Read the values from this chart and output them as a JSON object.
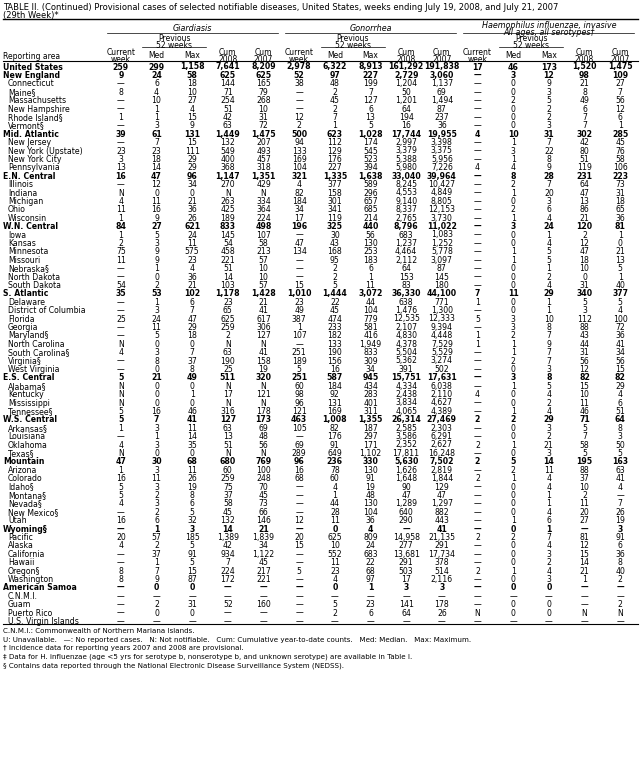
{
  "title1": "TABLE II. (Continued) Provisional cases of selected notifiable diseases, United States, weeks ending July 19, 2008, and July 21, 2007",
  "title2": "(29th Week)*",
  "rows": [
    [
      "United States",
      "259",
      "299",
      "1,158",
      "7,641",
      "8,209",
      "2,978",
      "6,322",
      "8,913",
      "161,292",
      "191,838",
      "17",
      "46",
      "173",
      "1,520",
      "1,475"
    ],
    [
      "New England",
      "9",
      "24",
      "58",
      "625",
      "625",
      "52",
      "97",
      "227",
      "2,729",
      "3,060",
      "—",
      "3",
      "12",
      "98",
      "109"
    ],
    [
      "Connecticut",
      "—",
      "6",
      "18",
      "144",
      "165",
      "38",
      "48",
      "199",
      "1,204",
      "1,137",
      "—",
      "0",
      "9",
      "21",
      "27"
    ],
    [
      "Maine§",
      "8",
      "4",
      "10",
      "71",
      "79",
      "—",
      "2",
      "7",
      "50",
      "69",
      "—",
      "0",
      "3",
      "8",
      "7"
    ],
    [
      "Massachusetts",
      "—",
      "10",
      "27",
      "254",
      "268",
      "—",
      "45",
      "127",
      "1,201",
      "1,494",
      "—",
      "2",
      "5",
      "49",
      "56"
    ],
    [
      "New Hampshire",
      "—",
      "1",
      "4",
      "51",
      "10",
      "—",
      "2",
      "6",
      "64",
      "87",
      "—",
      "0",
      "2",
      "6",
      "12"
    ],
    [
      "Rhode Island§",
      "1",
      "1",
      "15",
      "42",
      "31",
      "12",
      "7",
      "13",
      "194",
      "237",
      "—",
      "0",
      "2",
      "7",
      "6"
    ],
    [
      "Vermont§",
      "—",
      "3",
      "9",
      "63",
      "72",
      "2",
      "1",
      "5",
      "16",
      "36",
      "—",
      "0",
      "3",
      "7",
      "1"
    ],
    [
      "Mid. Atlantic",
      "39",
      "61",
      "131",
      "1,449",
      "1,475",
      "500",
      "623",
      "1,028",
      "17,744",
      "19,955",
      "4",
      "10",
      "31",
      "302",
      "285"
    ],
    [
      "New Jersey",
      "—",
      "7",
      "15",
      "132",
      "207",
      "94",
      "112",
      "174",
      "2,997",
      "3,398",
      "—",
      "1",
      "7",
      "42",
      "45"
    ],
    [
      "New York (Upstate)",
      "23",
      "23",
      "111",
      "549",
      "493",
      "133",
      "129",
      "545",
      "3,379",
      "3,375",
      "—",
      "3",
      "22",
      "80",
      "76"
    ],
    [
      "New York City",
      "3",
      "18",
      "29",
      "400",
      "457",
      "169",
      "176",
      "523",
      "5,388",
      "5,956",
      "—",
      "1",
      "8",
      "51",
      "58"
    ],
    [
      "Pennsylvania",
      "13",
      "14",
      "29",
      "368",
      "318",
      "104",
      "227",
      "394",
      "5,980",
      "7,226",
      "4",
      "4",
      "9",
      "119",
      "106"
    ],
    [
      "E.N. Central",
      "16",
      "47",
      "96",
      "1,147",
      "1,351",
      "321",
      "1,335",
      "1,638",
      "33,040",
      "39,964",
      "—",
      "8",
      "28",
      "231",
      "223"
    ],
    [
      "Illinois",
      "—",
      "12",
      "34",
      "270",
      "429",
      "4",
      "377",
      "589",
      "8,245",
      "10,427",
      "—",
      "2",
      "7",
      "64",
      "73"
    ],
    [
      "Indiana",
      "N",
      "0",
      "0",
      "N",
      "N",
      "82",
      "158",
      "296",
      "4,553",
      "4,849",
      "—",
      "1",
      "20",
      "47",
      "31"
    ],
    [
      "Michigan",
      "4",
      "11",
      "21",
      "263",
      "334",
      "184",
      "301",
      "657",
      "9,140",
      "8,805",
      "—",
      "0",
      "3",
      "13",
      "18"
    ],
    [
      "Ohio",
      "11",
      "16",
      "36",
      "425",
      "364",
      "34",
      "341",
      "685",
      "8,337",
      "12,153",
      "—",
      "2",
      "6",
      "86",
      "65"
    ],
    [
      "Wisconsin",
      "1",
      "9",
      "26",
      "189",
      "224",
      "17",
      "119",
      "214",
      "2,765",
      "3,730",
      "—",
      "1",
      "4",
      "21",
      "36"
    ],
    [
      "W.N. Central",
      "84",
      "27",
      "621",
      "833",
      "498",
      "196",
      "325",
      "440",
      "8,796",
      "11,022",
      "—",
      "3",
      "24",
      "120",
      "81"
    ],
    [
      "Iowa",
      "1",
      "5",
      "24",
      "145",
      "107",
      "—",
      "30",
      "56",
      "683",
      "1,083",
      "—",
      "0",
      "1",
      "2",
      "1"
    ],
    [
      "Kansas",
      "2",
      "3",
      "11",
      "54",
      "58",
      "47",
      "43",
      "130",
      "1,237",
      "1,252",
      "—",
      "0",
      "4",
      "12",
      "0"
    ],
    [
      "Minnesota",
      "75",
      "9",
      "575",
      "458",
      "213",
      "134",
      "168",
      "253",
      "4,464",
      "5,778",
      "—",
      "1",
      "5",
      "47",
      "21"
    ],
    [
      "Missouri",
      "11",
      "9",
      "23",
      "221",
      "57",
      "—",
      "95",
      "183",
      "2,112",
      "3,097",
      "—",
      "1",
      "5",
      "18",
      "13"
    ],
    [
      "Nebraska§",
      "—",
      "1",
      "4",
      "51",
      "10",
      "—",
      "2",
      "6",
      "64",
      "87",
      "—",
      "0",
      "1",
      "10",
      "5"
    ],
    [
      "North Dakota",
      "—",
      "0",
      "36",
      "14",
      "10",
      "—",
      "2",
      "1",
      "153",
      "145",
      "—",
      "0",
      "2",
      "0",
      "1"
    ],
    [
      "South Dakota",
      "54",
      "2",
      "21",
      "103",
      "57",
      "15",
      "5",
      "11",
      "83",
      "180",
      "—",
      "0",
      "4",
      "31",
      "40"
    ],
    [
      "S. Atlantic",
      "35",
      "53",
      "102",
      "1,178",
      "1,428",
      "1,010",
      "1,444",
      "3,072",
      "36,330",
      "44,100",
      "7",
      "11",
      "29",
      "340",
      "377"
    ],
    [
      "Delaware",
      "—",
      "1",
      "6",
      "23",
      "21",
      "23",
      "22",
      "44",
      "638",
      "771",
      "1",
      "0",
      "1",
      "5",
      "5"
    ],
    [
      "District of Columbia",
      "—",
      "3",
      "7",
      "65",
      "41",
      "49",
      "45",
      "104",
      "1,476",
      "1,300",
      "—",
      "0",
      "1",
      "3",
      "4"
    ],
    [
      "Florida",
      "25",
      "24",
      "47",
      "625",
      "617",
      "387",
      "474",
      "779",
      "12,535",
      "12,333",
      "5",
      "3",
      "10",
      "112",
      "100"
    ],
    [
      "Georgia",
      "—",
      "11",
      "29",
      "259",
      "306",
      "1",
      "233",
      "581",
      "2,107",
      "9,394",
      "—",
      "3",
      "8",
      "88",
      "72"
    ],
    [
      "Maryland§",
      "—",
      "5",
      "18",
      "2",
      "127",
      "107",
      "182",
      "416",
      "4,830",
      "4,448",
      "1",
      "2",
      "7",
      "43",
      "36"
    ],
    [
      "North Carolina",
      "N",
      "0",
      "0",
      "N",
      "N",
      "—",
      "133",
      "1,949",
      "4,378",
      "7,529",
      "1",
      "1",
      "9",
      "44",
      "41"
    ],
    [
      "South Carolina§",
      "4",
      "3",
      "7",
      "63",
      "41",
      "251",
      "190",
      "833",
      "5,504",
      "5,529",
      "—",
      "1",
      "7",
      "31",
      "34"
    ],
    [
      "Virginia§",
      "—",
      "8",
      "37",
      "190",
      "158",
      "189",
      "156",
      "309",
      "5,362",
      "3,274",
      "—",
      "2",
      "7",
      "56",
      "56"
    ],
    [
      "West Virginia",
      "—",
      "0",
      "8",
      "25",
      "19",
      "5",
      "16",
      "34",
      "391",
      "502",
      "—",
      "0",
      "3",
      "12",
      "15"
    ],
    [
      "E.S. Central",
      "5",
      "21",
      "49",
      "511",
      "320",
      "251",
      "587",
      "945",
      "15,751",
      "17,631",
      "—",
      "3",
      "8",
      "82",
      "82"
    ],
    [
      "Alabama§",
      "N",
      "0",
      "0",
      "N",
      "N",
      "60",
      "184",
      "434",
      "4,334",
      "6,038",
      "—",
      "1",
      "5",
      "15",
      "29"
    ],
    [
      "Kentucky",
      "N",
      "0",
      "1",
      "17",
      "121",
      "98",
      "92",
      "283",
      "2,438",
      "2,110",
      "4",
      "0",
      "4",
      "10",
      "4"
    ],
    [
      "Mississippi",
      "N",
      "0",
      "0",
      "N",
      "N",
      "96",
      "131",
      "401",
      "3,834",
      "4,627",
      "—",
      "0",
      "2",
      "11",
      "6"
    ],
    [
      "Tennessee§",
      "5",
      "16",
      "46",
      "316",
      "178",
      "121",
      "169",
      "311",
      "4,065",
      "4,389",
      "—",
      "1",
      "4",
      "46",
      "51"
    ],
    [
      "W.S. Central",
      "5",
      "7",
      "41",
      "127",
      "173",
      "463",
      "1,008",
      "1,355",
      "26,314",
      "27,469",
      "2",
      "2",
      "29",
      "71",
      "64"
    ],
    [
      "Arkansas§",
      "1",
      "3",
      "11",
      "63",
      "69",
      "105",
      "82",
      "187",
      "2,585",
      "2,303",
      "—",
      "0",
      "3",
      "5",
      "8"
    ],
    [
      "Louisiana",
      "—",
      "1",
      "14",
      "13",
      "48",
      "—",
      "176",
      "297",
      "3,586",
      "6,291",
      "—",
      "0",
      "2",
      "7",
      "3"
    ],
    [
      "Oklahoma",
      "4",
      "3",
      "35",
      "51",
      "56",
      "69",
      "91",
      "171",
      "2,352",
      "2,627",
      "2",
      "1",
      "21",
      "58",
      "50"
    ],
    [
      "Texas§",
      "N",
      "0",
      "0",
      "N",
      "N",
      "289",
      "649",
      "1,102",
      "17,811",
      "16,248",
      "—",
      "0",
      "3",
      "5",
      "5"
    ],
    [
      "Mountain",
      "47",
      "30",
      "68",
      "680",
      "769",
      "96",
      "236",
      "330",
      "5,630",
      "7,502",
      "2",
      "5",
      "14",
      "195",
      "163"
    ],
    [
      "Arizona",
      "1",
      "3",
      "11",
      "60",
      "100",
      "16",
      "78",
      "130",
      "1,626",
      "2,819",
      "—",
      "2",
      "11",
      "88",
      "63"
    ],
    [
      "Colorado",
      "16",
      "11",
      "26",
      "259",
      "248",
      "68",
      "60",
      "91",
      "1,648",
      "1,844",
      "2",
      "1",
      "4",
      "37",
      "41"
    ],
    [
      "Idaho§",
      "5",
      "3",
      "19",
      "75",
      "70",
      "—",
      "4",
      "19",
      "90",
      "129",
      "—",
      "0",
      "4",
      "10",
      "4"
    ],
    [
      "Montana§",
      "5",
      "2",
      "8",
      "37",
      "45",
      "—",
      "1",
      "48",
      "47",
      "47",
      "—",
      "0",
      "1",
      "2",
      "—"
    ],
    [
      "Nevada§",
      "4",
      "3",
      "6",
      "58",
      "73",
      "—",
      "44",
      "130",
      "1,289",
      "1,297",
      "—",
      "0",
      "1",
      "11",
      "7"
    ],
    [
      "New Mexico§",
      "—",
      "2",
      "5",
      "45",
      "66",
      "—",
      "28",
      "104",
      "640",
      "882",
      "—",
      "0",
      "4",
      "20",
      "26"
    ],
    [
      "Utah",
      "16",
      "6",
      "32",
      "132",
      "146",
      "12",
      "11",
      "36",
      "290",
      "443",
      "—",
      "1",
      "6",
      "27",
      "19"
    ],
    [
      "Wyoming§",
      "—",
      "1",
      "3",
      "14",
      "21",
      "—",
      "0",
      "4",
      "—",
      "41",
      "—",
      "0",
      "1",
      "—",
      "3"
    ],
    [
      "Pacific",
      "20",
      "57",
      "185",
      "1,389",
      "1,839",
      "20",
      "625",
      "809",
      "14,958",
      "21,135",
      "2",
      "2",
      "7",
      "81",
      "91"
    ],
    [
      "Alaska",
      "4",
      "2",
      "5",
      "42",
      "34",
      "15",
      "10",
      "24",
      "277",
      "291",
      "—",
      "0",
      "4",
      "12",
      "6"
    ],
    [
      "California",
      "—",
      "37",
      "91",
      "934",
      "1,122",
      "—",
      "552",
      "683",
      "13,681",
      "17,734",
      "—",
      "0",
      "3",
      "15",
      "36"
    ],
    [
      "Hawaii",
      "—",
      "1",
      "5",
      "7",
      "45",
      "—",
      "11",
      "22",
      "291",
      "378",
      "—",
      "0",
      "2",
      "14",
      "8"
    ],
    [
      "Oregon§",
      "8",
      "7",
      "15",
      "224",
      "217",
      "5",
      "23",
      "68",
      "503",
      "514",
      "2",
      "1",
      "4",
      "21",
      "40"
    ],
    [
      "Washington",
      "8",
      "9",
      "87",
      "172",
      "221",
      "—",
      "4",
      "97",
      "17",
      "2,116",
      "—",
      "0",
      "3",
      "1",
      "2"
    ],
    [
      "American Samoa",
      "—",
      "0",
      "0",
      "—",
      "—",
      "—",
      "0",
      "1",
      "3",
      "3",
      "—",
      "0",
      "0",
      "—",
      "—"
    ],
    [
      "C.N.M.I.",
      "—",
      "—",
      "—",
      "—",
      "—",
      "—",
      "—",
      "—",
      "—",
      "—",
      "—",
      "—",
      "—",
      "—",
      "—"
    ],
    [
      "Guam",
      "—",
      "2",
      "31",
      "52",
      "160",
      "—",
      "5",
      "23",
      "141",
      "178",
      "—",
      "0",
      "0",
      "—",
      "2"
    ],
    [
      "Puerto Rico",
      "—",
      "0",
      "0",
      "—",
      "—",
      "—",
      "2",
      "6",
      "64",
      "26",
      "N",
      "0",
      "0",
      "N",
      "N"
    ],
    [
      "U.S. Virgin Islands",
      "—",
      "—",
      "—",
      "—",
      "—",
      "—",
      "—",
      "—",
      "—",
      "—",
      "—",
      "—",
      "—",
      "—",
      "—"
    ]
  ],
  "bold_rows": [
    0,
    1,
    8,
    13,
    19,
    27,
    37,
    42,
    47,
    55,
    62
  ],
  "indent_rows": [
    2,
    3,
    4,
    5,
    6,
    7,
    9,
    10,
    11,
    12,
    14,
    15,
    16,
    17,
    18,
    20,
    21,
    22,
    23,
    24,
    25,
    26,
    28,
    29,
    30,
    31,
    32,
    33,
    34,
    35,
    36,
    38,
    39,
    40,
    41,
    43,
    44,
    45,
    46,
    48,
    49,
    50,
    51,
    52,
    53,
    54,
    56,
    57,
    58,
    59,
    60,
    61,
    63,
    64,
    65,
    66,
    67,
    68,
    69,
    70
  ],
  "footnotes": [
    "C.N.M.I.: Commonwealth of Northern Mariana Islands.",
    "U: Unavailable.   —: No reported cases.   N: Not notifiable.   Cum: Cumulative year-to-date counts.   Med: Median.   Max: Maximum.",
    "† Incidence data for reporting years 2007 and 2008 are provisional.",
    "‡ Data for H. influenzae (age <5 yrs for serotype b, nonserotype b, and unknown serotype) are available in Table I.",
    "§ Contains data reported through the National Electronic Disease Surveillance System (NEDSS)."
  ]
}
